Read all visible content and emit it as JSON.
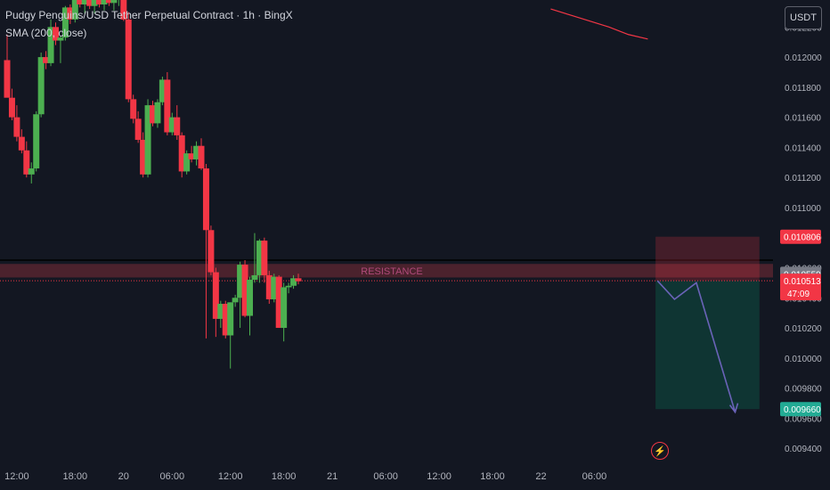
{
  "header": {
    "title": "Pudgy Penguins/USD Tether Perpetual Contract · 1h · BingX",
    "indicator": "SMA (200, close)"
  },
  "currency": "USDT",
  "colors": {
    "up": "#4caf50",
    "down": "#f23645",
    "sma": "#f23645",
    "background": "#131722",
    "zone": "#7a2b36",
    "target": "#0f3b36",
    "arrow": "#6a63b8"
  },
  "icons": {
    "alert": "lightning-icon"
  },
  "chart_data": {
    "type": "candlestick",
    "title": "Pudgy Penguins/USD Tether Perpetual Contract · 1h · BingX",
    "indicator": "SMA (200, close)",
    "ylim": [
      0.0093,
      0.01235
    ],
    "y_ticks": [
      "0.012200",
      "0.012000",
      "0.011800",
      "0.011600",
      "0.011400",
      "0.011200",
      "0.011000",
      "0.010800",
      "0.010600",
      "0.010400",
      "0.010200",
      "0.010000",
      "0.009800",
      "0.009600",
      "0.009400"
    ],
    "x_ticks": [
      {
        "label": "12:00",
        "index": 2
      },
      {
        "label": "18:00",
        "index": 14
      },
      {
        "label": "20",
        "index": 24
      },
      {
        "label": "06:00",
        "index": 34
      },
      {
        "label": "12:00",
        "index": 46
      },
      {
        "label": "18:00",
        "index": 57
      },
      {
        "label": "21",
        "index": 67
      },
      {
        "label": "06:00",
        "index": 78
      },
      {
        "label": "12:00",
        "index": 89
      },
      {
        "label": "18:00",
        "index": 100
      },
      {
        "label": "22",
        "index": 110
      },
      {
        "label": "06:00",
        "index": 121
      }
    ],
    "candles": [
      [
        0.01198,
        0.01215,
        0.01175,
        0.01173
      ],
      [
        0.01173,
        0.01179,
        0.01158,
        0.0116
      ],
      [
        0.0116,
        0.01168,
        0.01144,
        0.01147
      ],
      [
        0.01147,
        0.01152,
        0.01136,
        0.01138
      ],
      [
        0.01138,
        0.01144,
        0.0112,
        0.01122
      ],
      [
        0.01122,
        0.0113,
        0.01116,
        0.01126
      ],
      [
        0.01126,
        0.01164,
        0.01124,
        0.01162
      ],
      [
        0.01162,
        0.01203,
        0.0116,
        0.012
      ],
      [
        0.012,
        0.01204,
        0.01192,
        0.01196
      ],
      [
        0.01196,
        0.01225,
        0.01194,
        0.0122
      ],
      [
        0.0122,
        0.01223,
        0.01208,
        0.01211
      ],
      [
        0.01211,
        0.01214,
        0.01196,
        0.01213
      ],
      [
        0.01213,
        0.01234,
        0.01211,
        0.01233
      ],
      [
        0.01233,
        0.01235,
        0.01222,
        0.01225
      ],
      [
        0.01225,
        0.01242,
        0.01223,
        0.0124
      ],
      [
        0.0124,
        0.01245,
        0.01233,
        0.01235
      ],
      [
        0.01235,
        0.0124,
        0.01229,
        0.01238
      ],
      [
        0.01238,
        0.01242,
        0.01232,
        0.01234
      ],
      [
        0.01234,
        0.0124,
        0.01229,
        0.01238
      ],
      [
        0.01238,
        0.01242,
        0.01233,
        0.01235
      ],
      [
        0.01235,
        0.01241,
        0.01231,
        0.01239
      ],
      [
        0.01239,
        0.01243,
        0.01234,
        0.01236
      ],
      [
        0.01236,
        0.01241,
        0.01231,
        0.01238
      ],
      [
        0.01238,
        0.01242,
        0.01234,
        0.0124
      ],
      [
        0.0124,
        0.0126,
        0.01224,
        0.01225
      ],
      [
        0.01225,
        0.0123,
        0.0117,
        0.01172
      ],
      [
        0.01172,
        0.01175,
        0.01156,
        0.01159
      ],
      [
        0.01159,
        0.01164,
        0.01143,
        0.01145
      ],
      [
        0.01145,
        0.0115,
        0.0112,
        0.01122
      ],
      [
        0.01122,
        0.01172,
        0.0112,
        0.01168
      ],
      [
        0.01168,
        0.01171,
        0.01154,
        0.01156
      ],
      [
        0.01156,
        0.01172,
        0.01153,
        0.0117
      ],
      [
        0.0117,
        0.01187,
        0.01168,
        0.01185
      ],
      [
        0.01185,
        0.0119,
        0.01148,
        0.0115
      ],
      [
        0.0115,
        0.01163,
        0.01148,
        0.0116
      ],
      [
        0.0116,
        0.01168,
        0.01145,
        0.01148
      ],
      [
        0.01148,
        0.0115,
        0.0112,
        0.01124
      ],
      [
        0.01124,
        0.01138,
        0.01122,
        0.01136
      ],
      [
        0.01136,
        0.01141,
        0.0113,
        0.01132
      ],
      [
        0.01132,
        0.01144,
        0.01128,
        0.01141
      ],
      [
        0.01141,
        0.01146,
        0.01125,
        0.01126
      ],
      [
        0.01126,
        0.01129,
        0.01013,
        0.01085
      ],
      [
        0.01085,
        0.01088,
        0.01055,
        0.01057
      ],
      [
        0.01057,
        0.0106,
        0.01014,
        0.01026
      ],
      [
        0.01026,
        0.01038,
        0.0102,
        0.01036
      ],
      [
        0.01036,
        0.01038,
        0.01013,
        0.01015
      ],
      [
        0.01015,
        0.01037,
        0.00993,
        0.01037
      ],
      [
        0.01037,
        0.01042,
        0.01034,
        0.0104
      ],
      [
        0.0104,
        0.01064,
        0.0102,
        0.01062
      ],
      [
        0.01062,
        0.01065,
        0.01027,
        0.01028
      ],
      [
        0.01028,
        0.01054,
        0.01015,
        0.01052
      ],
      [
        0.01052,
        0.01083,
        0.0105,
        0.01055
      ],
      [
        0.01055,
        0.01079,
        0.0105,
        0.01078
      ],
      [
        0.01078,
        0.0108,
        0.0105,
        0.01055
      ],
      [
        0.01055,
        0.01058,
        0.01036,
        0.01039
      ],
      [
        0.01039,
        0.01056,
        0.01037,
        0.01054
      ],
      [
        0.01054,
        0.01055,
        0.0102,
        0.0102
      ],
      [
        0.0102,
        0.0105,
        0.01011,
        0.01047
      ],
      [
        0.01047,
        0.0105,
        0.01043,
        0.01048
      ],
      [
        0.01048,
        0.01055,
        0.01046,
        0.01053
      ],
      [
        0.01053,
        0.01056,
        0.01049,
        0.01051
      ]
    ],
    "sma_points": [
      [
        112,
        0.01232
      ],
      [
        116,
        0.01228
      ],
      [
        120,
        0.01224
      ],
      [
        124,
        0.0122
      ],
      [
        128,
        0.01215
      ],
      [
        132,
        0.01212
      ]
    ],
    "resistance": {
      "label": "RESISTANCE",
      "top": 0.010625,
      "bottom": 0.010535,
      "line": 0.01065
    },
    "position": {
      "entry": 0.010513,
      "stop": 0.010806,
      "target": 0.00966,
      "x_start": 133.6,
      "x_end": 155
    },
    "projection": [
      [
        134,
        0.010513
      ],
      [
        137.5,
        0.01039
      ],
      [
        142,
        0.0105
      ],
      [
        150,
        0.00964
      ]
    ],
    "price_labels": [
      {
        "price": 0.010806,
        "label": "0.010806",
        "style": "red"
      },
      {
        "price": 0.010559,
        "label": "0.010559",
        "style": "grey"
      },
      {
        "price": 0.010513,
        "label": "0.010513",
        "sub": "47:09",
        "style": "red"
      },
      {
        "price": 0.00966,
        "label": "0.009660",
        "style": "green"
      }
    ]
  }
}
